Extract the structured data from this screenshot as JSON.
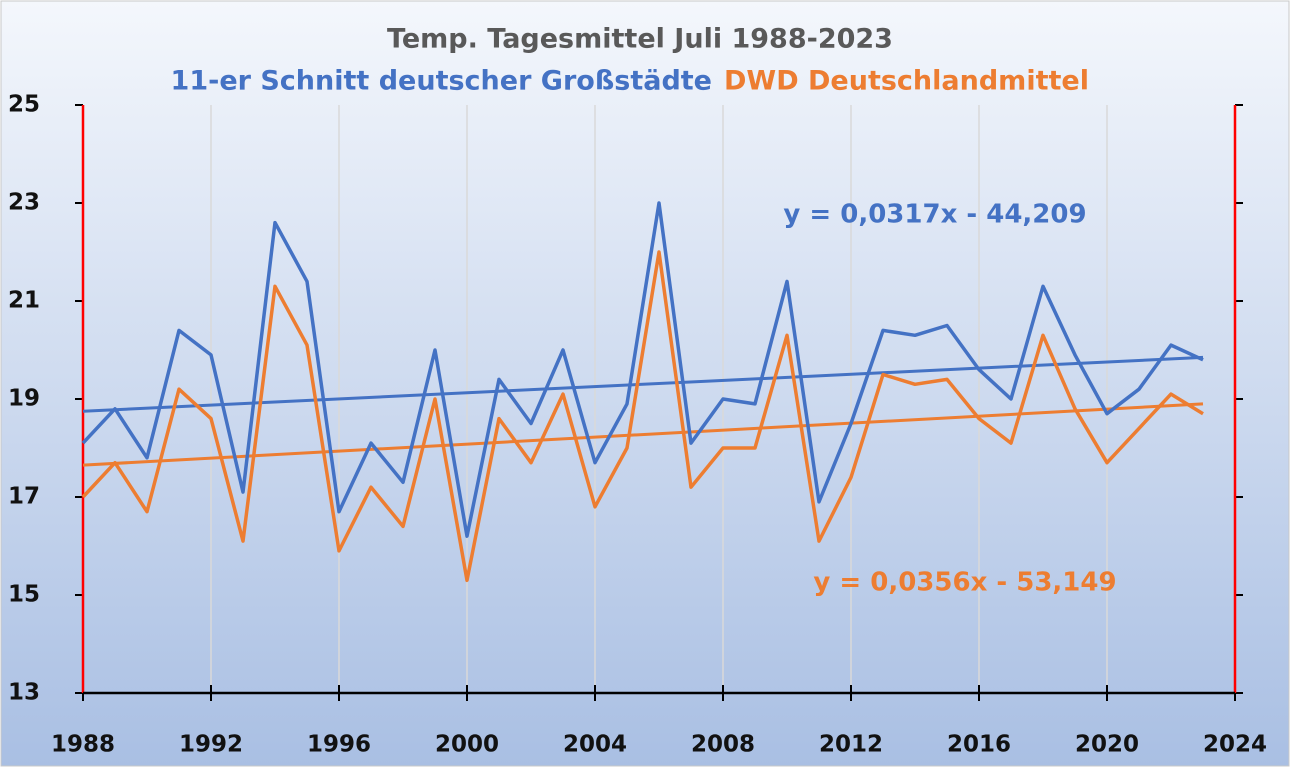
{
  "chart_data": {
    "type": "line",
    "title": "Temp. Tagesmittel Juli 1988-2023",
    "x": [
      1988,
      1989,
      1990,
      1991,
      1992,
      1993,
      1994,
      1995,
      1996,
      1997,
      1998,
      1999,
      2000,
      2001,
      2002,
      2003,
      2004,
      2005,
      2006,
      2007,
      2008,
      2009,
      2010,
      2011,
      2012,
      2013,
      2014,
      2015,
      2016,
      2017,
      2018,
      2019,
      2020,
      2021,
      2022,
      2023
    ],
    "series": [
      {
        "name": "11-er Schnitt deutscher Großstädte",
        "color": "#4472c4",
        "values": [
          18.1,
          18.8,
          17.8,
          20.4,
          19.9,
          17.1,
          22.6,
          21.4,
          16.7,
          18.1,
          17.3,
          20.0,
          16.2,
          19.4,
          18.5,
          20.0,
          17.7,
          18.9,
          23.0,
          18.1,
          19.0,
          18.9,
          21.4,
          16.9,
          18.5,
          20.4,
          20.3,
          20.5,
          19.6,
          19.0,
          21.3,
          19.9,
          18.7,
          19.2,
          20.1,
          19.8
        ]
      },
      {
        "name": "DWD Deutschlandmittel",
        "color": "#ed7d31",
        "values": [
          17.0,
          17.7,
          16.7,
          19.2,
          18.6,
          16.1,
          21.3,
          20.1,
          15.9,
          17.2,
          16.4,
          19.0,
          15.3,
          18.6,
          17.7,
          19.1,
          16.8,
          18.0,
          22.0,
          17.2,
          18.0,
          18.0,
          20.3,
          16.1,
          17.4,
          19.5,
          19.3,
          19.4,
          18.6,
          18.1,
          20.3,
          18.8,
          17.7,
          18.4,
          19.1,
          18.7
        ]
      }
    ],
    "trendlines": [
      {
        "label": "y = 0,0317x - 44,209",
        "color": "#4472c4",
        "x": [
          1988,
          2023
        ],
        "values": [
          18.75,
          19.85
        ]
      },
      {
        "label": "y = 0,0356x - 53,149",
        "color": "#ed7d31",
        "x": [
          1988,
          2023
        ],
        "values": [
          17.65,
          18.9
        ]
      }
    ],
    "xlim": [
      1988,
      2024
    ],
    "xticks": [
      1988,
      1992,
      1996,
      2000,
      2004,
      2008,
      2012,
      2016,
      2020,
      2024
    ],
    "ylim": [
      13,
      25
    ],
    "yticks": [
      13,
      15,
      17,
      19,
      21,
      23,
      25
    ],
    "grid": true
  }
}
